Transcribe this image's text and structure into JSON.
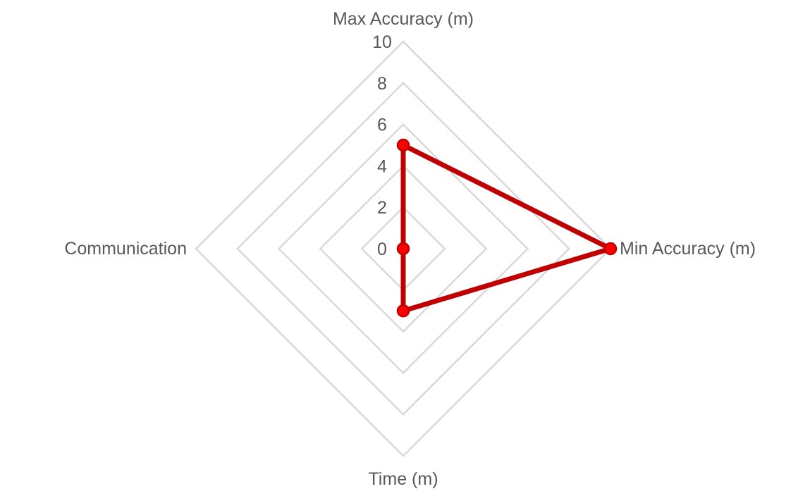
{
  "chart_data": {
    "type": "radar",
    "categories": [
      "Max Accuracy (m)",
      "Min Accuracy (m)",
      "Time (m)",
      "Communication"
    ],
    "series": [
      {
        "values": [
          5,
          10,
          3,
          0
        ],
        "color": "#c00000",
        "marker_color": "#ff0000"
      }
    ],
    "rlim": [
      0,
      10
    ],
    "ticks": [
      "0",
      "2",
      "4",
      "6",
      "8",
      "10"
    ],
    "grid": true,
    "grid_color": "#d9d9d9"
  }
}
